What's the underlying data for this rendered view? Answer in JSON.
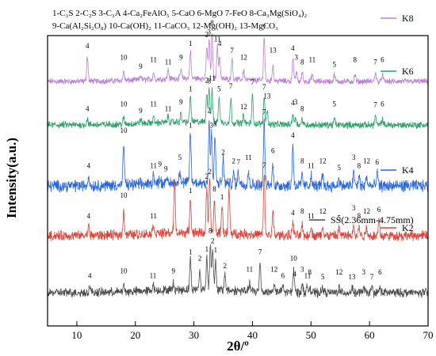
{
  "chart_data": {
    "type": "line",
    "xlabel": "2θ/º",
    "ylabel": "Intensity(a.u.)",
    "xlim": [
      5,
      70
    ],
    "x_ticks": [
      "10",
      "20",
      "30",
      "40",
      "50",
      "60",
      "70"
    ],
    "legend_text": [
      "1-C₃S 2-C₂S 3-C₃A 4-Ca₂FeAlO₅ 5-CaO 6-MgO 7-FeO 8-Ca₃Mg(SiO₄)₂",
      "9-Ca(Al₂Si₂O₈) 10-Ca(OH)₂ 11-CaCO₃ 12-Mg(OH)₂ 13-MgCO₃"
    ],
    "series": [
      {
        "name": "K8",
        "color": "#b983d1",
        "peaks": [
          {
            "x": 11.8,
            "h": 0.55,
            "label": "4"
          },
          {
            "x": 18.0,
            "h": 0.2,
            "label": "10"
          },
          {
            "x": 20.9,
            "h": 0.1,
            "label": "9"
          },
          {
            "x": 23.1,
            "h": 0.15,
            "label": "11"
          },
          {
            "x": 25.6,
            "h": 0.2,
            "label": "11"
          },
          {
            "x": 27.8,
            "h": 0.2,
            "label": "9"
          },
          {
            "x": 29.4,
            "h": 0.6,
            "label": "1"
          },
          {
            "x": 32.2,
            "h": 0.7,
            "label": "2"
          },
          {
            "x": 32.6,
            "h": 0.85,
            "label": "3"
          },
          {
            "x": 33.1,
            "h": 0.95,
            "label": "8"
          },
          {
            "x": 34.0,
            "h": 0.7,
            "label": "11"
          },
          {
            "x": 34.4,
            "h": 0.5,
            "label": "4"
          },
          {
            "x": 36.5,
            "h": 0.45,
            "label": "7"
          },
          {
            "x": 38.5,
            "h": 0.2,
            "label": "12"
          },
          {
            "x": 42.0,
            "h": 0.95,
            "label": "7"
          },
          {
            "x": 43.5,
            "h": 0.35,
            "label": "13"
          },
          {
            "x": 46.9,
            "h": 0.5,
            "label": "4"
          },
          {
            "x": 47.5,
            "h": 0.2,
            "label": "3"
          },
          {
            "x": 48.5,
            "h": 0.2,
            "label": "8"
          },
          {
            "x": 50.2,
            "h": 0.15,
            "label": "11"
          },
          {
            "x": 54.0,
            "h": 0.15,
            "label": "5"
          },
          {
            "x": 57.5,
            "h": 0.15,
            "label": "8"
          },
          {
            "x": 61.0,
            "h": 0.2,
            "label": "7"
          },
          {
            "x": 62.2,
            "h": 0.15,
            "label": "6"
          }
        ]
      },
      {
        "name": "K6",
        "color": "#2e9e6a",
        "peaks": [
          {
            "x": 11.8,
            "h": 0.15,
            "label": "4"
          },
          {
            "x": 18.0,
            "h": 0.15,
            "label": "10"
          },
          {
            "x": 20.9,
            "h": 0.1,
            "label": "9"
          },
          {
            "x": 23.1,
            "h": 0.15,
            "label": "11"
          },
          {
            "x": 25.6,
            "h": 0.15,
            "label": "11"
          },
          {
            "x": 27.8,
            "h": 0.2,
            "label": "9"
          },
          {
            "x": 29.4,
            "h": 0.65,
            "label": "1"
          },
          {
            "x": 32.2,
            "h": 0.75,
            "label": "2"
          },
          {
            "x": 32.6,
            "h": 0.85,
            "label": "8"
          },
          {
            "x": 33.1,
            "h": 0.8,
            "label": "11"
          },
          {
            "x": 34.3,
            "h": 0.65,
            "label": "5"
          },
          {
            "x": 36.3,
            "h": 0.6,
            "label": "7"
          },
          {
            "x": 38.5,
            "h": 0.2,
            "label": "12"
          },
          {
            "x": 40.0,
            "h": 0.7,
            "label": "7"
          },
          {
            "x": 42.0,
            "h": 0.7,
            "label": "7"
          },
          {
            "x": 42.5,
            "h": 0.35,
            "label": "13"
          },
          {
            "x": 46.9,
            "h": 0.3,
            "label": "4"
          },
          {
            "x": 47.4,
            "h": 0.2,
            "label": "3"
          },
          {
            "x": 48.5,
            "h": 0.15,
            "label": "8"
          },
          {
            "x": 54.0,
            "h": 0.15,
            "label": "5"
          },
          {
            "x": 61.0,
            "h": 0.25,
            "label": "7"
          },
          {
            "x": 62.2,
            "h": 0.15,
            "label": "6"
          }
        ]
      },
      {
        "name": "K4",
        "color": "#2b67d6",
        "peaks": [
          {
            "x": 12.0,
            "h": 0.15,
            "label": "4"
          },
          {
            "x": 18.0,
            "h": 0.6,
            "label": "10"
          },
          {
            "x": 23.1,
            "h": 0.15,
            "label": "11"
          },
          {
            "x": 24.2,
            "h": 0.1,
            "label": "9"
          },
          {
            "x": 25.2,
            "h": 0.1,
            "label": "9"
          },
          {
            "x": 27.6,
            "h": 0.2,
            "label": "5"
          },
          {
            "x": 29.4,
            "h": 0.75,
            "label": "1"
          },
          {
            "x": 32.6,
            "h": 0.9,
            "label": "2"
          },
          {
            "x": 33.0,
            "h": 0.75,
            "label": "3"
          },
          {
            "x": 33.6,
            "h": 0.7,
            "label": "8"
          },
          {
            "x": 35.0,
            "h": 0.35,
            "label": "2"
          },
          {
            "x": 36.8,
            "h": 0.15,
            "label": "2"
          },
          {
            "x": 37.6,
            "h": 0.2,
            "label": "7"
          },
          {
            "x": 39.3,
            "h": 0.2,
            "label": "11"
          },
          {
            "x": 42.0,
            "h": 0.95,
            "label": "7"
          },
          {
            "x": 43.5,
            "h": 0.3,
            "label": "6"
          },
          {
            "x": 46.9,
            "h": 0.6,
            "label": "4"
          },
          {
            "x": 48.5,
            "h": 0.15,
            "label": "8"
          },
          {
            "x": 50.0,
            "h": 0.15,
            "label": "11"
          },
          {
            "x": 52.0,
            "h": 0.15,
            "label": "12"
          },
          {
            "x": 54.8,
            "h": 0.12,
            "label": "5"
          },
          {
            "x": 57.3,
            "h": 0.2,
            "label": "3"
          },
          {
            "x": 58.2,
            "h": 0.15,
            "label": "8"
          },
          {
            "x": 59.5,
            "h": 0.15,
            "label": "12"
          },
          {
            "x": 61.3,
            "h": 0.2,
            "label": "6"
          }
        ]
      },
      {
        "name": "K2",
        "color": "#d9453c",
        "peaks": [
          {
            "x": 12.0,
            "h": 0.15,
            "label": "4"
          },
          {
            "x": 18.0,
            "h": 0.4,
            "label": "10"
          },
          {
            "x": 23.1,
            "h": 0.15,
            "label": "11"
          },
          {
            "x": 26.7,
            "h": 0.8,
            "label": ""
          },
          {
            "x": 29.4,
            "h": 0.55,
            "label": "1"
          },
          {
            "x": 32.2,
            "h": 0.7,
            "label": "2"
          },
          {
            "x": 32.7,
            "h": 0.85,
            "label": "2"
          },
          {
            "x": 33.5,
            "h": 0.5,
            "label": "8"
          },
          {
            "x": 34.8,
            "h": 0.45,
            "label": "1"
          },
          {
            "x": 36.0,
            "h": 0.7,
            "label": ""
          },
          {
            "x": 42.0,
            "h": 0.95,
            "label": "7"
          },
          {
            "x": 43.5,
            "h": 0.35,
            "label": ""
          },
          {
            "x": 46.9,
            "h": 0.2,
            "label": "4"
          },
          {
            "x": 48.5,
            "h": 0.15,
            "label": "8"
          },
          {
            "x": 50.0,
            "h": 0.15,
            "label": "11"
          },
          {
            "x": 52.0,
            "h": 0.15,
            "label": "12"
          },
          {
            "x": 54.8,
            "h": 0.12,
            "label": "5"
          },
          {
            "x": 57.3,
            "h": 0.2,
            "label": "3"
          },
          {
            "x": 58.2,
            "h": 0.15,
            "label": "8"
          },
          {
            "x": 59.5,
            "h": 0.15,
            "label": "12"
          },
          {
            "x": 61.6,
            "h": 0.25,
            "label": "6"
          }
        ]
      },
      {
        "name": "SS(2.36mm-4.75mm)",
        "color": "#4a4a4a",
        "peaks": [
          {
            "x": 12.2,
            "h": 0.12,
            "label": "4"
          },
          {
            "x": 18.0,
            "h": 0.12,
            "label": "10"
          },
          {
            "x": 23.0,
            "h": 0.12,
            "label": "11"
          },
          {
            "x": 26.5,
            "h": 0.12,
            "label": "9"
          },
          {
            "x": 29.4,
            "h": 0.55,
            "label": "1"
          },
          {
            "x": 31.0,
            "h": 0.35,
            "label": "2"
          },
          {
            "x": 32.2,
            "h": 0.6,
            "label": "1"
          },
          {
            "x": 32.8,
            "h": 0.85,
            "label": "8"
          },
          {
            "x": 33.2,
            "h": 0.75,
            "label": "2"
          },
          {
            "x": 33.7,
            "h": 0.5,
            "label": "1"
          },
          {
            "x": 35.3,
            "h": 0.3,
            "label": "2"
          },
          {
            "x": 39.5,
            "h": 0.15,
            "label": "11"
          },
          {
            "x": 41.3,
            "h": 0.55,
            "label": "7"
          },
          {
            "x": 43.7,
            "h": 0.15,
            "label": "12"
          },
          {
            "x": 45.2,
            "h": 0.12,
            "label": "6"
          },
          {
            "x": 47.0,
            "h": 0.35,
            "label": "10"
          },
          {
            "x": 47.2,
            "h": 0.15,
            "label": "4"
          },
          {
            "x": 48.5,
            "h": 0.15,
            "label": "3"
          },
          {
            "x": 49.4,
            "h": 0.12,
            "label": "11"
          },
          {
            "x": 49.8,
            "h": 0.1,
            "label": "8"
          },
          {
            "x": 52.0,
            "h": 0.1,
            "label": "5"
          },
          {
            "x": 54.8,
            "h": 0.1,
            "label": "12"
          },
          {
            "x": 57.0,
            "h": 0.1,
            "label": "13"
          },
          {
            "x": 59.0,
            "h": 0.1,
            "label": "3"
          },
          {
            "x": 60.4,
            "h": 0.1,
            "label": "7"
          },
          {
            "x": 61.8,
            "h": 0.1,
            "label": "6"
          }
        ]
      }
    ]
  }
}
